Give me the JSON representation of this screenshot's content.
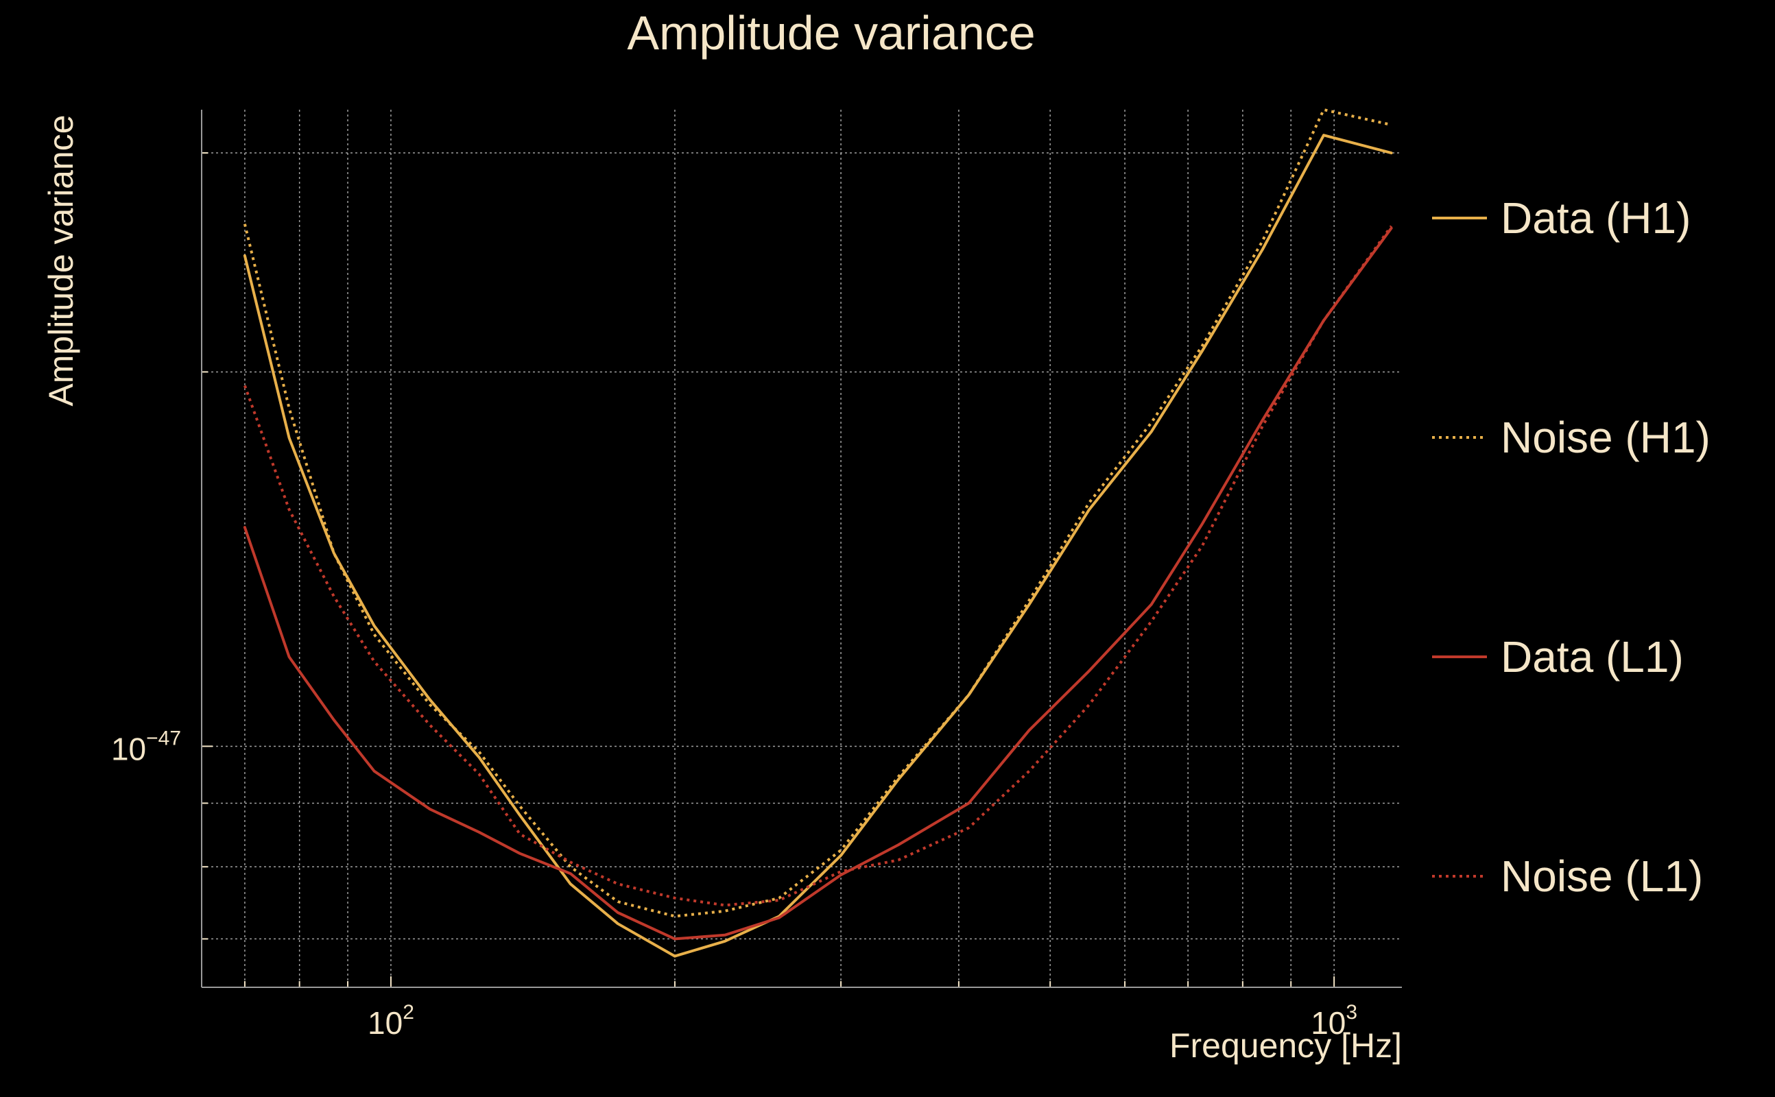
{
  "chart_data": {
    "type": "line",
    "title": "Amplitude variance",
    "xlabel": "Frequency [Hz]",
    "ylabel": "Amplitude variance",
    "x_scale": "log",
    "y_scale": "log",
    "xlim": [
      63,
      1180
    ],
    "ylim": [
      6.4e-48,
      3.25e-47
    ],
    "x_ticks": [
      {
        "value": 100,
        "base": "10",
        "exp": "2"
      },
      {
        "value": 1000,
        "base": "10",
        "exp": "3"
      }
    ],
    "y_ticks": [
      {
        "value": 1e-47,
        "base": "10",
        "exp": "−47"
      }
    ],
    "grid": true,
    "legend_position": "right",
    "colors": {
      "background": "#000000",
      "text": "#F5E6C8",
      "h1": "#E8B04A",
      "l1": "#C0392B"
    },
    "series": [
      {
        "name": "Data (H1)",
        "color": "#E8B04A",
        "style": "solid",
        "x": [
          70,
          78,
          87,
          96,
          110,
          124,
          137,
          155,
          174,
          200,
          226,
          258,
          300,
          345,
          410,
          475,
          550,
          640,
          725,
          840,
          975,
          1150
        ],
        "y": [
          2.48e-47,
          1.77e-47,
          1.43e-47,
          1.25e-47,
          1.09e-47,
          9.8e-48,
          8.8e-48,
          7.75e-48,
          7.2e-48,
          6.78e-48,
          6.97e-48,
          7.3e-48,
          8.17e-48,
          9.4e-48,
          1.1e-47,
          1.3e-47,
          1.55e-47,
          1.79e-47,
          2.08e-47,
          2.51e-47,
          3.1e-47,
          3e-47
        ]
      },
      {
        "name": "Noise (H1)",
        "color": "#E8B04A",
        "style": "dotted",
        "x": [
          70,
          78,
          87,
          96,
          110,
          124,
          137,
          155,
          174,
          200,
          226,
          258,
          300,
          345,
          410,
          475,
          550,
          640,
          725,
          840,
          975,
          1150
        ],
        "y": [
          2.63e-47,
          1.87e-47,
          1.43e-47,
          1.23e-47,
          1.08e-47,
          9.9e-48,
          8.95e-48,
          8e-48,
          7.5e-48,
          7.3e-48,
          7.37e-48,
          7.55e-48,
          8.25e-48,
          9.45e-48,
          1.1e-47,
          1.31e-47,
          1.57e-47,
          1.82e-47,
          2.1e-47,
          2.55e-47,
          3.25e-47,
          3.16e-47
        ]
      },
      {
        "name": "Data (L1)",
        "color": "#C0392B",
        "style": "solid",
        "x": [
          70,
          78,
          87,
          96,
          110,
          124,
          137,
          155,
          174,
          200,
          226,
          258,
          300,
          345,
          410,
          475,
          550,
          640,
          725,
          840,
          975,
          1150
        ],
        "y": [
          1.5e-47,
          1.18e-47,
          1.05e-47,
          9.55e-48,
          8.9e-48,
          8.53e-48,
          8.2e-48,
          7.9e-48,
          7.35e-48,
          7e-48,
          7.05e-48,
          7.28e-48,
          7.88e-48,
          8.33e-48,
          9e-48,
          1.03e-47,
          1.15e-47,
          1.3e-47,
          1.51e-47,
          1.83e-47,
          2.2e-47,
          2.61e-47
        ]
      },
      {
        "name": "Noise (L1)",
        "color": "#C0392B",
        "style": "dotted",
        "x": [
          70,
          78,
          87,
          96,
          110,
          124,
          137,
          155,
          174,
          200,
          226,
          258,
          300,
          345,
          410,
          475,
          550,
          640,
          725,
          840,
          975,
          1150
        ],
        "y": [
          1.95e-47,
          1.55e-47,
          1.32e-47,
          1.17e-47,
          1.04e-47,
          9.5e-48,
          8.5e-48,
          8.07e-48,
          7.75e-48,
          7.55e-48,
          7.45e-48,
          7.52e-48,
          7.93e-48,
          8.1e-48,
          8.6e-48,
          9.55e-48,
          1.08e-47,
          1.26e-47,
          1.45e-47,
          1.81e-47,
          2.2e-47,
          2.62e-47
        ]
      }
    ]
  }
}
